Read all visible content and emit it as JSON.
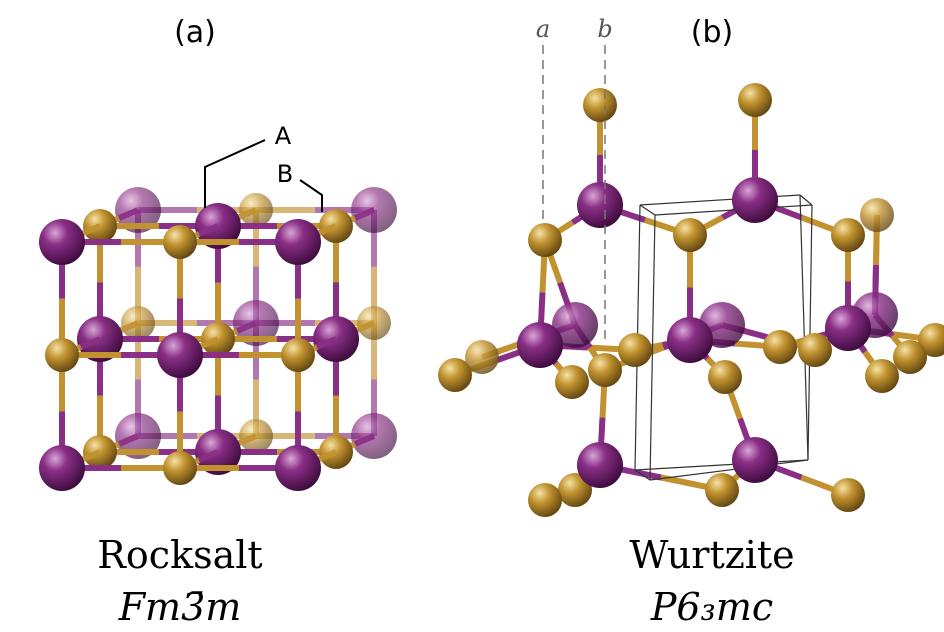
{
  "panels": [
    {
      "label": "(a)",
      "name": "Rocksalt",
      "space_group": "Fm3̄m",
      "site_labels": [
        "A",
        "B"
      ]
    },
    {
      "label": "(b)",
      "name": "Wurtzite",
      "space_group": "P6₃mc",
      "axis_labels": [
        "a",
        "b"
      ]
    }
  ]
}
